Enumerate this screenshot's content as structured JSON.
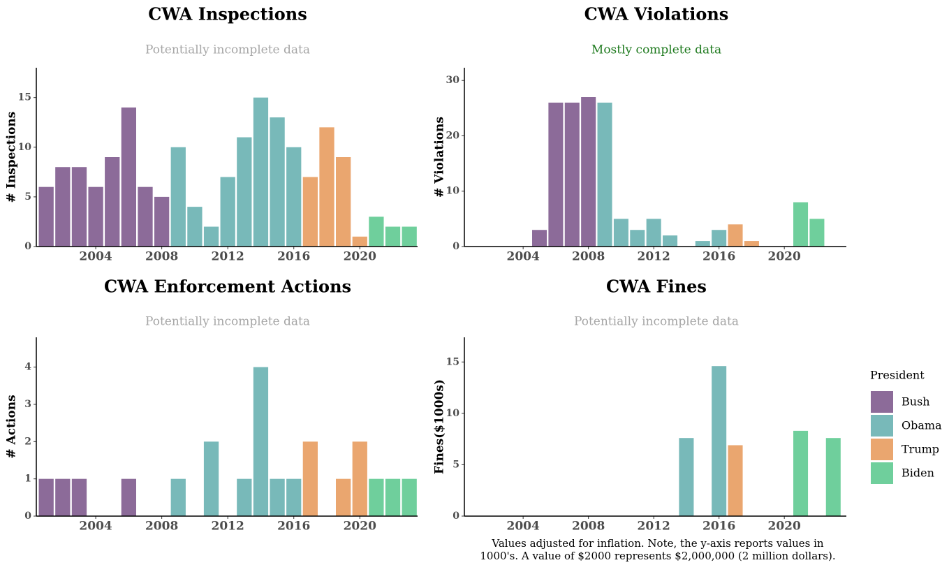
{
  "chart_data": [
    {
      "type": "bar",
      "title": "CWA Inspections",
      "subtitle": "Potentially incomplete data",
      "subtitle_color": "#a6a6a6",
      "ylabel": "# Inspections",
      "x": [
        2001,
        2002,
        2003,
        2004,
        2005,
        2006,
        2007,
        2008,
        2009,
        2010,
        2011,
        2012,
        2013,
        2014,
        2015,
        2016,
        2017,
        2018,
        2019,
        2020,
        2021,
        2022,
        2023
      ],
      "xlim": [
        2000.4,
        2023.5
      ],
      "xticks": [
        2004,
        2008,
        2012,
        2016,
        2020
      ],
      "ylim": [
        0,
        18
      ],
      "yticks": [
        0,
        5,
        10,
        15
      ],
      "series": [
        {
          "name": "Bush",
          "color": "#8c6b99",
          "values": [
            6,
            8,
            8,
            6,
            9,
            14,
            6,
            5,
            null,
            null,
            null,
            null,
            null,
            null,
            null,
            null,
            null,
            null,
            null,
            null,
            null,
            null,
            null
          ]
        },
        {
          "name": "Obama",
          "color": "#78b9b9",
          "values": [
            null,
            null,
            null,
            null,
            null,
            null,
            null,
            null,
            10,
            4,
            2,
            7,
            11,
            15,
            13,
            10,
            null,
            null,
            null,
            null,
            null,
            null,
            null
          ]
        },
        {
          "name": "Trump",
          "color": "#eaa66f",
          "values": [
            null,
            null,
            null,
            null,
            null,
            null,
            null,
            null,
            null,
            null,
            null,
            null,
            null,
            null,
            null,
            null,
            7,
            12,
            9,
            1,
            null,
            null,
            null
          ]
        },
        {
          "name": "Biden",
          "color": "#6fcf9c",
          "values": [
            null,
            null,
            null,
            null,
            null,
            null,
            null,
            null,
            null,
            null,
            null,
            null,
            null,
            null,
            null,
            null,
            null,
            null,
            null,
            null,
            3,
            2,
            2
          ]
        }
      ]
    },
    {
      "type": "bar",
      "title": "CWA Violations",
      "subtitle": "Mostly complete data",
      "subtitle_color": "#1e7a1e",
      "ylabel": "# Violations",
      "x": [
        2001,
        2002,
        2003,
        2004,
        2005,
        2006,
        2007,
        2008,
        2009,
        2010,
        2011,
        2012,
        2013,
        2014,
        2015,
        2016,
        2017,
        2018,
        2019,
        2020,
        2021,
        2022,
        2023
      ],
      "xlim": [
        2000.4,
        2023.8
      ],
      "xticks": [
        2004,
        2008,
        2012,
        2016,
        2020
      ],
      "ylim": [
        0,
        32.3
      ],
      "yticks": [
        0,
        10,
        20,
        30
      ],
      "series": [
        {
          "name": "Bush",
          "color": "#8c6b99",
          "values": [
            null,
            null,
            null,
            null,
            3,
            26,
            26,
            27,
            null,
            null,
            null,
            null,
            null,
            null,
            null,
            null,
            null,
            null,
            null,
            null,
            null,
            null,
            null
          ]
        },
        {
          "name": "Obama",
          "color": "#78b9b9",
          "values": [
            null,
            null,
            null,
            null,
            null,
            null,
            null,
            null,
            26,
            5,
            3,
            5,
            2,
            null,
            1,
            3,
            null,
            null,
            null,
            null,
            null,
            null,
            null
          ]
        },
        {
          "name": "Trump",
          "color": "#eaa66f",
          "values": [
            null,
            null,
            null,
            null,
            null,
            null,
            null,
            null,
            null,
            null,
            null,
            null,
            null,
            null,
            null,
            null,
            4,
            1,
            null,
            null,
            null,
            null,
            null
          ]
        },
        {
          "name": "Biden",
          "color": "#6fcf9c",
          "values": [
            null,
            null,
            null,
            null,
            null,
            null,
            null,
            null,
            null,
            null,
            null,
            null,
            null,
            null,
            null,
            null,
            null,
            null,
            null,
            null,
            8,
            5,
            null
          ]
        }
      ]
    },
    {
      "type": "bar",
      "title": "CWA Enforcement Actions",
      "subtitle": "Potentially incomplete data",
      "subtitle_color": "#a6a6a6",
      "ylabel": "# Actions",
      "x": [
        2001,
        2002,
        2003,
        2004,
        2005,
        2006,
        2007,
        2008,
        2009,
        2010,
        2011,
        2012,
        2013,
        2014,
        2015,
        2016,
        2017,
        2018,
        2019,
        2020,
        2021,
        2022,
        2023
      ],
      "xlim": [
        2000.4,
        2023.5
      ],
      "xticks": [
        2004,
        2008,
        2012,
        2016,
        2020
      ],
      "ylim": [
        0,
        4.8
      ],
      "yticks": [
        0,
        1,
        2,
        3,
        4
      ],
      "series": [
        {
          "name": "Bush",
          "color": "#8c6b99",
          "values": [
            1,
            1,
            1,
            null,
            null,
            1,
            null,
            null,
            null,
            null,
            null,
            null,
            null,
            null,
            null,
            null,
            null,
            null,
            null,
            null,
            null,
            null,
            null
          ]
        },
        {
          "name": "Obama",
          "color": "#78b9b9",
          "values": [
            null,
            null,
            null,
            null,
            null,
            null,
            null,
            null,
            1,
            null,
            2,
            null,
            1,
            4,
            1,
            1,
            null,
            null,
            null,
            null,
            null,
            null,
            null
          ]
        },
        {
          "name": "Trump",
          "color": "#eaa66f",
          "values": [
            null,
            null,
            null,
            null,
            null,
            null,
            null,
            null,
            null,
            null,
            null,
            null,
            null,
            null,
            null,
            null,
            2,
            null,
            1,
            2,
            null,
            null,
            null
          ]
        },
        {
          "name": "Biden",
          "color": "#6fcf9c",
          "values": [
            null,
            null,
            null,
            null,
            null,
            null,
            null,
            null,
            null,
            null,
            null,
            null,
            null,
            null,
            null,
            null,
            null,
            null,
            null,
            null,
            1,
            1,
            1
          ]
        }
      ]
    },
    {
      "type": "bar",
      "title": "CWA Fines",
      "subtitle": "Potentially incomplete data",
      "subtitle_color": "#a6a6a6",
      "ylabel": "Fines($1000s)",
      "note": [
        "Values adjusted for inflation. Note, the y-axis reports values in",
        "1000's. A value of $2000 represents $2,000,000 (2 million dollars)."
      ],
      "legend_title": "President",
      "x": [
        2001,
        2002,
        2003,
        2004,
        2005,
        2006,
        2007,
        2008,
        2009,
        2010,
        2011,
        2012,
        2013,
        2014,
        2015,
        2016,
        2017,
        2018,
        2019,
        2020,
        2021,
        2022,
        2023
      ],
      "xlim": [
        2000.4,
        2023.8
      ],
      "xticks": [
        2004,
        2008,
        2012,
        2016,
        2020
      ],
      "ylim": [
        0,
        17.4
      ],
      "yticks": [
        0,
        5,
        10,
        15
      ],
      "series": [
        {
          "name": "Bush",
          "color": "#8c6b99",
          "values": [
            null,
            null,
            null,
            null,
            null,
            null,
            null,
            null,
            null,
            null,
            null,
            null,
            null,
            null,
            null,
            null,
            null,
            null,
            null,
            null,
            null,
            null,
            null
          ]
        },
        {
          "name": "Obama",
          "color": "#78b9b9",
          "values": [
            null,
            null,
            null,
            null,
            null,
            null,
            null,
            null,
            null,
            null,
            null,
            null,
            null,
            7.6,
            null,
            14.6,
            null,
            null,
            null,
            null,
            null,
            null,
            null
          ]
        },
        {
          "name": "Trump",
          "color": "#eaa66f",
          "values": [
            null,
            null,
            null,
            null,
            null,
            null,
            null,
            null,
            null,
            null,
            null,
            null,
            null,
            null,
            null,
            null,
            6.9,
            null,
            null,
            null,
            null,
            null,
            null
          ]
        },
        {
          "name": "Biden",
          "color": "#6fcf9c",
          "values": [
            null,
            null,
            null,
            null,
            null,
            null,
            null,
            null,
            null,
            null,
            null,
            null,
            null,
            null,
            null,
            null,
            null,
            null,
            null,
            null,
            8.3,
            null,
            7.6
          ]
        }
      ]
    }
  ]
}
